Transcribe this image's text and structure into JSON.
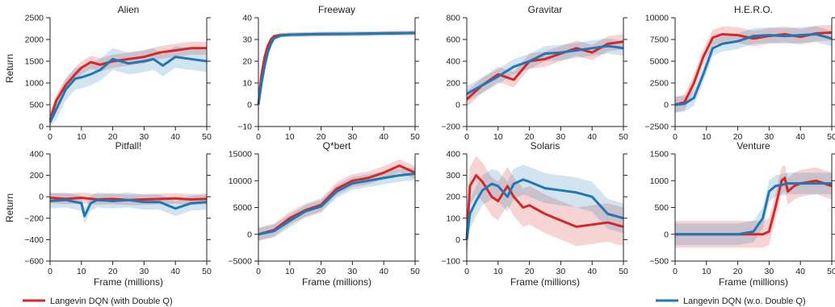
{
  "chart_data": {
    "type": "line",
    "xlabel": "Frame (millions)",
    "ylabel": "Return",
    "legend": {
      "placement": "bottom",
      "entries": [
        {
          "name": "Langevin DQN (with Double Q)",
          "color": "#d62728"
        },
        {
          "name": "Langevin DQN (w.o. Double Q)",
          "color": "#1f77b4"
        }
      ]
    },
    "grid": false,
    "xlim": [
      0,
      50
    ],
    "xticks": [
      0,
      10,
      20,
      30,
      40,
      50
    ],
    "panels": [
      {
        "title": "Alien",
        "ylim": [
          0,
          2500
        ],
        "yticks": [
          0,
          500,
          1000,
          1500,
          2000,
          2500
        ],
        "series": [
          {
            "name": "Langevin DQN (with Double Q)",
            "x": [
              0,
              2,
              5,
              8,
              10,
              13,
              16,
              20,
              25,
              30,
              35,
              40,
              45,
              50
            ],
            "y": [
              150,
              600,
              950,
              1200,
              1350,
              1480,
              1420,
              1500,
              1550,
              1600,
              1700,
              1750,
              1800,
              1800
            ],
            "band": 150
          },
          {
            "name": "Langevin DQN (w.o. Double Q)",
            "x": [
              0,
              2,
              5,
              8,
              10,
              13,
              16,
              20,
              25,
              30,
              33,
              36,
              40,
              45,
              50
            ],
            "y": [
              100,
              400,
              850,
              1100,
              1130,
              1200,
              1300,
              1550,
              1450,
              1500,
              1550,
              1400,
              1600,
              1550,
              1500
            ],
            "band": 250
          }
        ]
      },
      {
        "title": "Freeway",
        "ylim": [
          -10,
          40
        ],
        "yticks": [
          -10,
          0,
          10,
          20,
          30,
          40
        ],
        "series": [
          {
            "name": "Langevin DQN (with Double Q)",
            "x": [
              0,
              1,
              2,
              3,
              4,
              5,
              7,
              10,
              20,
              30,
              40,
              50
            ],
            "y": [
              0,
              14,
              22,
              27,
              30,
              31.5,
              32,
              32.2,
              32.5,
              32.6,
              32.8,
              33
            ],
            "band": 1
          },
          {
            "name": "Langevin DQN (w.o. Double Q)",
            "x": [
              0,
              1,
              2,
              3,
              4,
              5,
              7,
              10,
              20,
              30,
              40,
              50
            ],
            "y": [
              0,
              10,
              18,
              24,
              28,
              30.5,
              31.8,
              32.2,
              32.5,
              32.6,
              32.8,
              33
            ],
            "band": 1
          }
        ]
      },
      {
        "title": "Gravitar",
        "ylim": [
          -200,
          800
        ],
        "yticks": [
          -200,
          0,
          200,
          400,
          600,
          800
        ],
        "series": [
          {
            "name": "Langevin DQN (with Double Q)",
            "x": [
              0,
              5,
              10,
              15,
              20,
              25,
              30,
              35,
              40,
              45,
              50
            ],
            "y": [
              50,
              180,
              280,
              230,
              400,
              420,
              470,
              520,
              480,
              560,
              580
            ],
            "band": 70
          },
          {
            "name": "Langevin DQN (w.o. Double Q)",
            "x": [
              0,
              5,
              10,
              15,
              20,
              25,
              30,
              35,
              40,
              45,
              50
            ],
            "y": [
              100,
              180,
              260,
              350,
              400,
              470,
              480,
              500,
              520,
              540,
              520
            ],
            "band": 70
          }
        ]
      },
      {
        "title": "H.E.R.O.",
        "ylim": [
          -2500,
          10000
        ],
        "yticks": [
          -2500,
          0,
          2500,
          5000,
          7500,
          10000
        ],
        "series": [
          {
            "name": "Langevin DQN (with Double Q)",
            "x": [
              0,
              3,
              6,
              9,
              12,
              15,
              20,
              25,
              30,
              35,
              40,
              45,
              50
            ],
            "y": [
              0,
              300,
              2500,
              5500,
              7700,
              8100,
              8000,
              7600,
              7900,
              8100,
              7800,
              8200,
              8300
            ],
            "band": 900
          },
          {
            "name": "Langevin DQN (w.o. Double Q)",
            "x": [
              0,
              3,
              6,
              9,
              12,
              15,
              20,
              25,
              30,
              35,
              40,
              45,
              50
            ],
            "y": [
              0,
              100,
              800,
              3500,
              6500,
              7000,
              7300,
              7900,
              8000,
              7900,
              8000,
              8100,
              7600
            ],
            "band": 900
          }
        ]
      },
      {
        "title": "Pitfall!",
        "ylim": [
          -600,
          400
        ],
        "yticks": [
          -600,
          -400,
          -200,
          0,
          200,
          400
        ],
        "series": [
          {
            "name": "Langevin DQN (with Double Q)",
            "x": [
              0,
              5,
              10,
              15,
              20,
              25,
              30,
              35,
              40,
              45,
              50
            ],
            "y": [
              -10,
              -20,
              -10,
              -25,
              -20,
              -30,
              -25,
              -20,
              -15,
              -25,
              -20
            ],
            "band": 50
          },
          {
            "name": "Langevin DQN (w.o. Double Q)",
            "x": [
              0,
              5,
              10,
              11,
              13,
              15,
              20,
              25,
              30,
              35,
              40,
              45,
              50
            ],
            "y": [
              -40,
              -30,
              -60,
              -180,
              -60,
              -30,
              -40,
              -30,
              -50,
              -50,
              -110,
              -60,
              -50
            ],
            "band": 70
          }
        ]
      },
      {
        "title": "Q*bert",
        "ylim": [
          -5000,
          15000
        ],
        "yticks": [
          -5000,
          0,
          5000,
          10000,
          15000
        ],
        "series": [
          {
            "name": "Langevin DQN (with Double Q)",
            "x": [
              0,
              5,
              10,
              15,
              20,
              25,
              30,
              35,
              40,
              45,
              50
            ],
            "y": [
              0,
              800,
              3000,
              4500,
              5500,
              8500,
              10000,
              10500,
              11500,
              12800,
              11500
            ],
            "band": 1200
          },
          {
            "name": "Langevin DQN (w.o. Double Q)",
            "x": [
              0,
              5,
              10,
              15,
              20,
              25,
              30,
              35,
              40,
              45,
              50
            ],
            "y": [
              0,
              600,
              2500,
              4300,
              5200,
              8000,
              9500,
              10000,
              10500,
              11000,
              11300
            ],
            "band": 1200
          }
        ]
      },
      {
        "title": "Solaris",
        "ylim": [
          -100,
          400
        ],
        "yticks": [
          -100,
          0,
          100,
          200,
          300,
          400
        ],
        "series": [
          {
            "name": "Langevin DQN (with Double Q)",
            "x": [
              0,
              1,
              3,
              5,
              8,
              10,
              13,
              15,
              18,
              20,
              25,
              30,
              35,
              40,
              45,
              50
            ],
            "y": [
              0,
              250,
              300,
              270,
              200,
              180,
              250,
              200,
              150,
              160,
              120,
              90,
              60,
              70,
              80,
              60
            ],
            "band": 90
          },
          {
            "name": "Langevin DQN (w.o. Double Q)",
            "x": [
              0,
              1,
              3,
              5,
              8,
              10,
              13,
              15,
              18,
              20,
              25,
              30,
              35,
              40,
              45,
              50
            ],
            "y": [
              0,
              120,
              180,
              230,
              260,
              250,
              200,
              260,
              280,
              270,
              240,
              230,
              220,
              200,
              120,
              100
            ],
            "band": 70
          }
        ]
      },
      {
        "title": "Venture",
        "ylim": [
          -500,
          1500
        ],
        "yticks": [
          -500,
          0,
          500,
          1000,
          1500
        ],
        "series": [
          {
            "name": "Langevin DQN (with Double Q)",
            "x": [
              0,
              10,
              20,
              28,
              30,
              32,
              34,
              35,
              36,
              38,
              40,
              45,
              50
            ],
            "y": [
              0,
              0,
              0,
              0,
              50,
              500,
              1000,
              1050,
              800,
              900,
              950,
              1000,
              900
            ],
            "band": 250
          },
          {
            "name": "Langevin DQN (w.o. Double Q)",
            "x": [
              0,
              10,
              20,
              25,
              28,
              30,
              32,
              34,
              36,
              40,
              45,
              50
            ],
            "y": [
              0,
              0,
              0,
              50,
              300,
              800,
              900,
              920,
              950,
              950,
              950,
              950
            ],
            "band": 200
          }
        ]
      }
    ]
  }
}
